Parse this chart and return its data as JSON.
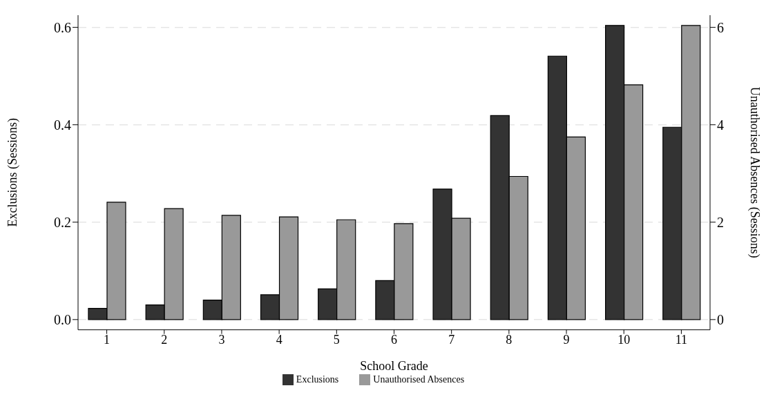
{
  "chart_data": {
    "type": "bar",
    "xlabel": "School Grade",
    "ylabel": "Exclusions (Sessions)",
    "y2label": "Unauthorised Absences (Sessions)",
    "categories": [
      "1",
      "2",
      "3",
      "4",
      "5",
      "6",
      "7",
      "8",
      "9",
      "10",
      "11"
    ],
    "series": [
      {
        "name": "Exclusions",
        "color": "#333333",
        "values": [
          0.023,
          0.03,
          0.04,
          0.051,
          0.063,
          0.08,
          0.268,
          0.419,
          0.541,
          0.604,
          0.395
        ]
      },
      {
        "name": "Unauthorised Absences",
        "color": "#999999",
        "axis": "y2",
        "values": [
          2.41,
          2.28,
          2.14,
          2.11,
          2.05,
          1.97,
          2.08,
          2.94,
          3.75,
          4.82,
          6.04
        ]
      }
    ],
    "ylim": [
      -0.021,
      0.625
    ],
    "yticks": [
      {
        "value": 0,
        "label": "0.0"
      },
      {
        "value": 0.2,
        "label": "0.2"
      },
      {
        "value": 0.4,
        "label": "0.4"
      },
      {
        "value": 0.6,
        "label": "0.6"
      }
    ],
    "y2lim": [
      -0.21,
      6.25
    ],
    "y2ticks": [
      0,
      2,
      4,
      6
    ],
    "grid": "y",
    "legend": "bottom"
  }
}
